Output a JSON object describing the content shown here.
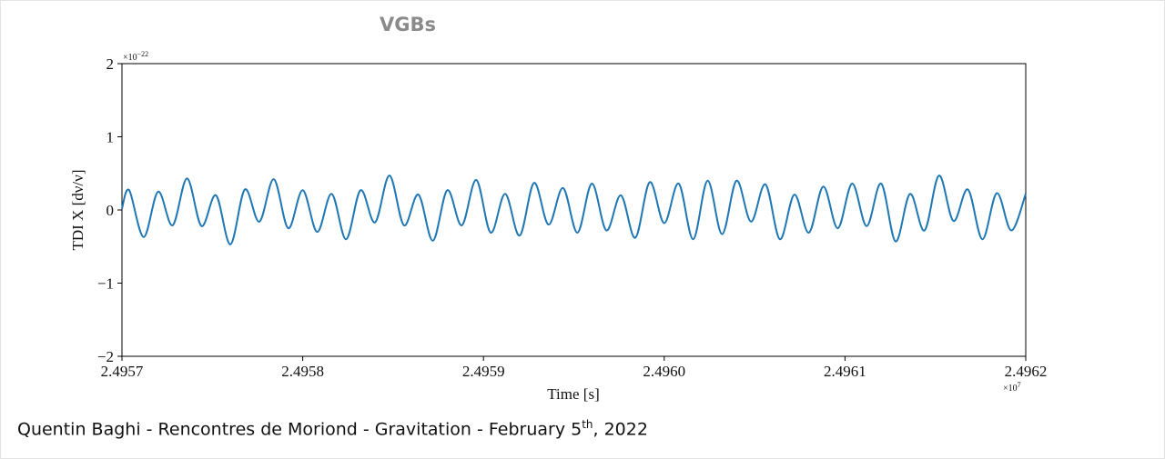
{
  "chart_data": {
    "type": "line",
    "title": "VGBs",
    "x_label": "Time [s]",
    "y_label": "TDI X [dν/ν]",
    "x_scale": {
      "base": "×10",
      "exponent": "7"
    },
    "y_scale": {
      "base": "×10",
      "exponent": "−22"
    },
    "color": "#1f77b4",
    "xlim": [
      2.4957,
      2.4962
    ],
    "xticks": [
      2.4957,
      2.4958,
      2.4959,
      {
        "value": 2.496,
        "label": "2.4960"
      },
      2.4961,
      2.4962
    ],
    "ylim": [
      -2,
      2
    ],
    "yticks": [
      {
        "value": -2,
        "label": "−2"
      },
      {
        "value": -1,
        "label": "−1"
      },
      0,
      1,
      2
    ],
    "x": [
      2.4957,
      2.495704,
      2.495712,
      2.49572,
      2.495728,
      2.495736,
      2.495744,
      2.495752,
      2.49576,
      2.495768,
      2.495776,
      2.495784,
      2.495792,
      2.4958,
      2.495808,
      2.495816,
      2.495824,
      2.495832,
      2.49584,
      2.495848,
      2.495856,
      2.495864,
      2.495872,
      2.49588,
      2.495888,
      2.495896,
      2.495904,
      2.495912,
      2.49592,
      2.495928,
      2.495936,
      2.495944,
      2.495952,
      2.49596,
      2.495968,
      2.495976,
      2.495984,
      2.495992,
      2.496,
      2.496008,
      2.496016,
      2.496024,
      2.496032,
      2.49604,
      2.496048,
      2.496056,
      2.496064,
      2.496072,
      2.49608,
      2.496088,
      2.496096,
      2.496104,
      2.496112,
      2.49612,
      2.496128,
      2.496136,
      2.496144,
      2.496152,
      2.49616,
      2.496168,
      2.496176,
      2.496184,
      2.496192,
      2.4962
    ],
    "values": [
      0.02,
      0.27,
      -0.37,
      0.25,
      -0.21,
      0.43,
      -0.22,
      0.2,
      -0.47,
      0.28,
      -0.16,
      0.42,
      -0.25,
      0.27,
      -0.3,
      0.22,
      -0.4,
      0.27,
      -0.17,
      0.47,
      -0.21,
      0.21,
      -0.42,
      0.27,
      -0.21,
      0.41,
      -0.31,
      0.22,
      -0.35,
      0.37,
      -0.2,
      0.3,
      -0.31,
      0.36,
      -0.28,
      0.2,
      -0.38,
      0.38,
      -0.18,
      0.36,
      -0.4,
      0.4,
      -0.33,
      0.4,
      -0.16,
      0.35,
      -0.4,
      0.21,
      -0.31,
      0.32,
      -0.25,
      0.36,
      -0.22,
      0.36,
      -0.43,
      0.22,
      -0.28,
      0.47,
      -0.15,
      0.28,
      -0.4,
      0.23,
      -0.28,
      0.22
    ]
  },
  "footer": {
    "text": "Quentin Baghi - Rencontres de Moriond - Gravitation - February 5",
    "superscript": "th",
    "tail": ", 2022"
  }
}
